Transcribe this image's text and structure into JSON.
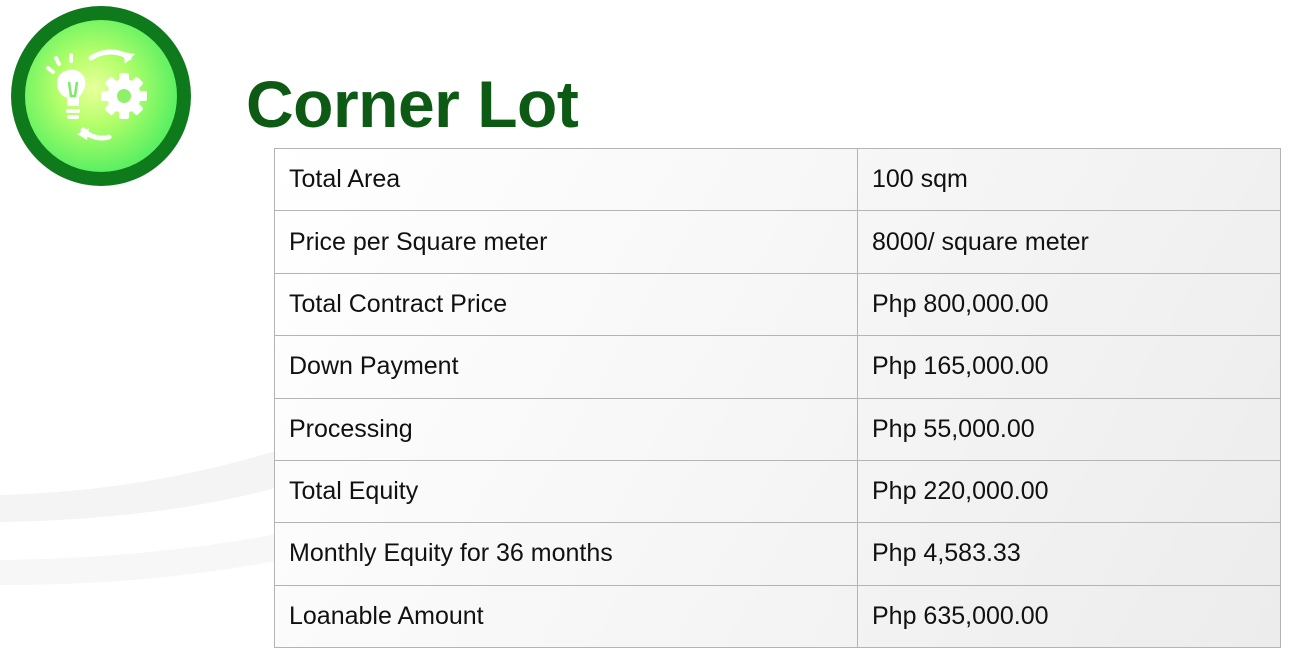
{
  "title": "Corner Lot",
  "logo": {
    "icon": "lightbulb-gear-cycle-icon",
    "ring_color": "#0e7a1c",
    "fill_color": "#7ef26a"
  },
  "colors": {
    "title": "#0d5a14",
    "table_border": "#b4b4b4"
  },
  "rows": [
    {
      "label": "Total Area",
      "value": "100 sqm"
    },
    {
      "label": "Price per Square meter",
      "value": "8000/ square meter"
    },
    {
      "label": "Total Contract Price",
      "value": "Php 800,000.00"
    },
    {
      "label": "Down Payment",
      "value": "Php 165,000.00"
    },
    {
      "label": "Processing",
      "value": "Php 55,000.00"
    },
    {
      "label": "Total Equity",
      "value": "Php 220,000.00"
    },
    {
      "label": "Monthly Equity for 36 months",
      "value": "Php 4,583.33"
    },
    {
      "label": "Loanable Amount",
      "value": "Php 635,000.00"
    }
  ]
}
